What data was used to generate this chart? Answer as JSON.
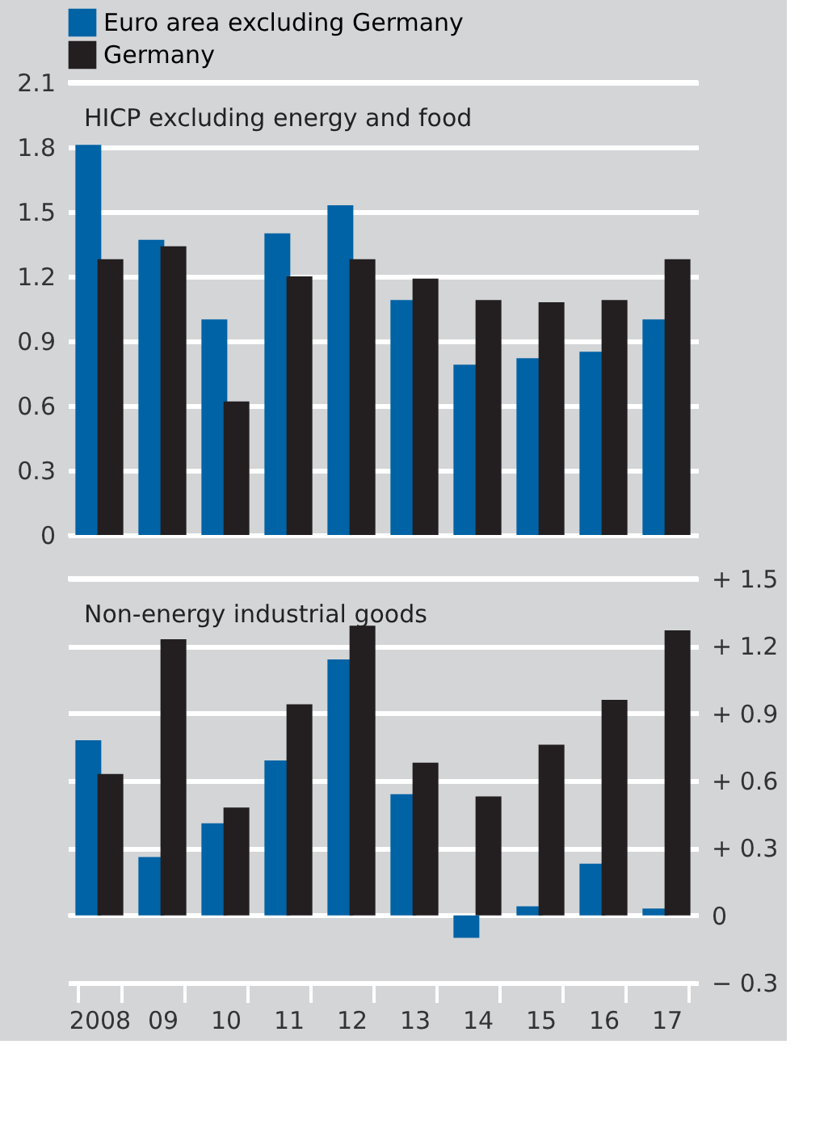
{
  "chart_data": [
    {
      "type": "bar",
      "title": "HICP excluding energy and food",
      "categories": [
        "2008",
        "09",
        "10",
        "11",
        "12",
        "13",
        "14",
        "15",
        "16",
        "17"
      ],
      "series": [
        {
          "name": "Euro area excluding Germany",
          "color": "#0063a6",
          "values": [
            1.81,
            1.37,
            1.0,
            1.4,
            1.53,
            1.09,
            0.79,
            0.82,
            0.85,
            1.0
          ]
        },
        {
          "name": "Germany",
          "color": "#231f20",
          "values": [
            1.28,
            1.34,
            0.62,
            1.2,
            1.28,
            1.19,
            1.09,
            1.08,
            1.09,
            1.28
          ]
        }
      ],
      "ylim": [
        0,
        2.1
      ],
      "yticks": [
        0,
        0.3,
        0.6,
        0.9,
        1.2,
        1.5,
        1.8,
        2.1
      ],
      "grid": "y",
      "legend": "top left",
      "tick_labels": "y"
    },
    {
      "type": "bar",
      "title": "Non-energy industrial goods",
      "categories": [
        "2008",
        "09",
        "10",
        "11",
        "12",
        "13",
        "14",
        "15",
        "16",
        "17"
      ],
      "series": [
        {
          "color": "#0063a6",
          "axis": "y2",
          "values": [
            0.78,
            0.26,
            0.41,
            0.69,
            1.14,
            0.54,
            -0.1,
            0.04,
            0.23,
            0.03
          ]
        },
        {
          "color": "#231f20",
          "axis": "y2",
          "values": [
            0.63,
            1.23,
            0.48,
            0.94,
            1.29,
            0.68,
            0.53,
            0.76,
            0.96,
            1.27
          ]
        }
      ],
      "y2lim": [
        -0.3,
        1.5
      ],
      "y2ticks": [
        {
          "value": -0.3,
          "label": "− 0.3"
        },
        0,
        {
          "value": 0.3,
          "label": "+ 0.3"
        },
        {
          "value": 0.6,
          "label": "+ 0.6"
        },
        {
          "value": 0.9,
          "label": "+ 0.9"
        },
        {
          "value": 1.2,
          "label": "+ 1.2"
        },
        {
          "value": 1.5,
          "label": "+ 1.5"
        }
      ],
      "grid": "y"
    }
  ]
}
